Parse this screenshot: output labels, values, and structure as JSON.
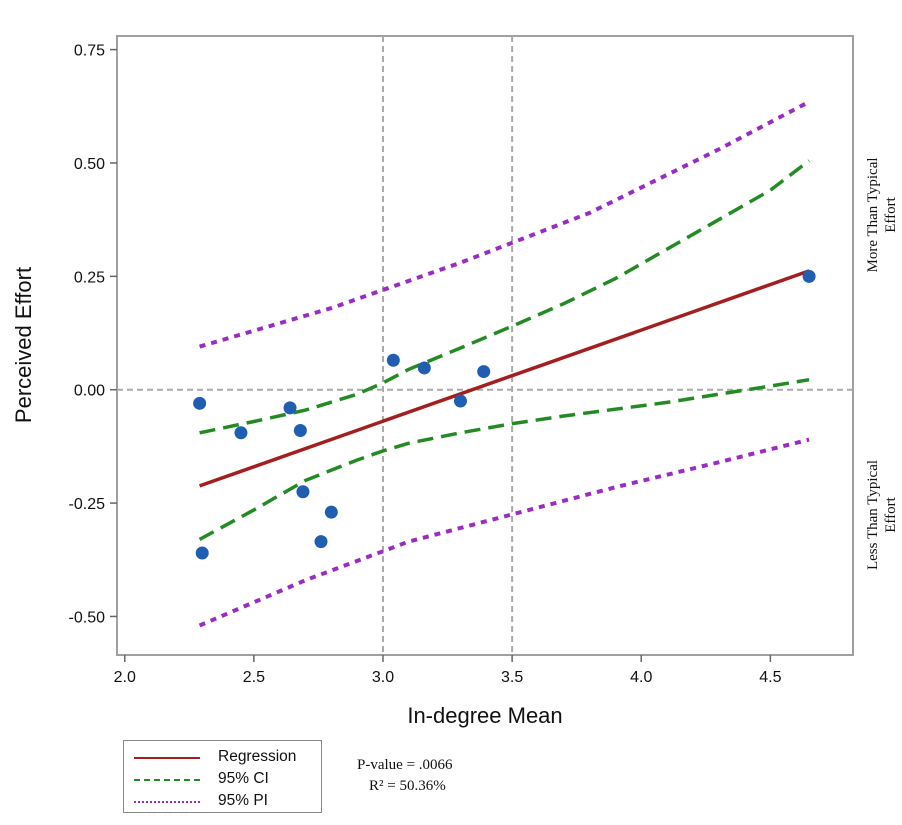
{
  "chart_data": {
    "type": "scatter",
    "xlabel": "In-degree Mean",
    "ylabel": "Perceived Effort",
    "xlim": [
      1.97,
      4.82
    ],
    "ylim": [
      -0.585,
      0.78
    ],
    "x_ticks": [
      "2.0",
      "2.5",
      "3.0",
      "3.5",
      "4.0",
      "4.5"
    ],
    "x_tick_values": [
      2.0,
      2.5,
      3.0,
      3.5,
      4.0,
      4.5
    ],
    "y_ticks": [
      "0.75",
      "0.50",
      "0.25",
      "0.00",
      "-0.25",
      "-0.50"
    ],
    "y_tick_values": [
      0.75,
      0.5,
      0.25,
      0.0,
      -0.25,
      -0.5
    ],
    "points": [
      {
        "x": 2.29,
        "y": -0.03
      },
      {
        "x": 2.3,
        "y": -0.36
      },
      {
        "x": 2.45,
        "y": -0.095
      },
      {
        "x": 2.64,
        "y": -0.04
      },
      {
        "x": 2.68,
        "y": -0.09
      },
      {
        "x": 2.69,
        "y": -0.225
      },
      {
        "x": 2.76,
        "y": -0.335
      },
      {
        "x": 2.8,
        "y": -0.27
      },
      {
        "x": 3.04,
        "y": 0.065
      },
      {
        "x": 3.16,
        "y": 0.048
      },
      {
        "x": 3.3,
        "y": -0.025
      },
      {
        "x": 3.39,
        "y": 0.04
      },
      {
        "x": 4.65,
        "y": 0.25
      }
    ],
    "regression": {
      "x": [
        2.29,
        4.65
      ],
      "y": [
        -0.212,
        0.262
      ]
    },
    "ci_upper": {
      "x": [
        2.29,
        2.5,
        2.7,
        2.9,
        3.0,
        3.1,
        3.3,
        3.5,
        3.7,
        3.9,
        4.1,
        4.3,
        4.5,
        4.65
      ],
      "y": [
        -0.095,
        -0.07,
        -0.045,
        -0.01,
        0.015,
        0.045,
        0.092,
        0.14,
        0.19,
        0.245,
        0.31,
        0.375,
        0.44,
        0.505
      ]
    },
    "ci_lower": {
      "x": [
        2.29,
        2.5,
        2.7,
        2.9,
        3.0,
        3.1,
        3.3,
        3.5,
        3.7,
        3.9,
        4.1,
        4.3,
        4.5,
        4.65
      ],
      "y": [
        -0.33,
        -0.265,
        -0.2,
        -0.155,
        -0.135,
        -0.118,
        -0.095,
        -0.075,
        -0.058,
        -0.043,
        -0.028,
        -0.01,
        0.008,
        0.022
      ]
    },
    "pi_upper": {
      "x": [
        2.29,
        2.8,
        3.3,
        3.8,
        4.3,
        4.65
      ],
      "y": [
        0.095,
        0.18,
        0.28,
        0.39,
        0.53,
        0.635
      ]
    },
    "pi_lower": {
      "x": [
        2.29,
        2.7,
        3.1,
        3.5,
        3.9,
        4.3,
        4.65
      ],
      "y": [
        -0.52,
        -0.42,
        -0.335,
        -0.275,
        -0.215,
        -0.16,
        -0.11
      ]
    },
    "reference_lines": {
      "vertical": [
        3.0,
        3.5
      ],
      "horizontal": [
        0.0
      ]
    },
    "legend_position": "below-left",
    "legend": [
      {
        "name": "Regression",
        "color": "#a31f1f",
        "style": "solid"
      },
      {
        "name": "95% CI",
        "color": "#238b23",
        "style": "long-dash"
      },
      {
        "name": "95% PI",
        "color": "#9a2bc4",
        "style": "short-dash"
      }
    ],
    "point_color": "#1f5eb0",
    "annotations": {
      "upper_right": [
        "More Than Typical",
        "Effort"
      ],
      "lower_right": [
        "Less Than Typical",
        "Effort"
      ],
      "p_value": "P-value = .0066",
      "r_squared": "R² = 50.36%"
    }
  }
}
